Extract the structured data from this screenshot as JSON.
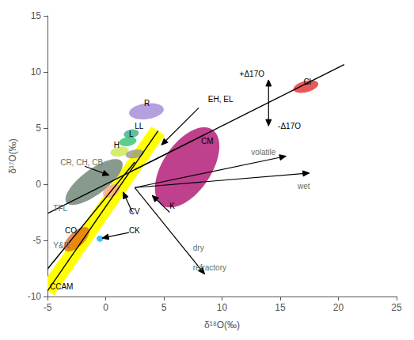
{
  "chart_data": {
    "type": "scatter",
    "x_label": "δ¹⁸O(‰)",
    "y_label": "δ¹⁷O(‰)",
    "xlim": [
      -5,
      25
    ],
    "ylim": [
      -10,
      15
    ],
    "xticks": [
      -5,
      0,
      5,
      10,
      15,
      20,
      25
    ],
    "yticks": [
      -10,
      -5,
      0,
      5,
      10,
      15
    ],
    "grid": false,
    "bands": [
      {
        "points": [
          [
            -5.0,
            -9.5
          ],
          [
            4.5,
            4.75
          ]
        ],
        "half_width": 0.7,
        "color": "#ffff00"
      }
    ],
    "ellipses": [
      {
        "x": 17.2,
        "y": 8.7,
        "width": 2.2,
        "height": 1.0,
        "angle": 15,
        "color": "#e02020"
      },
      {
        "x": 7.0,
        "y": 1.5,
        "width": 8.0,
        "height": 4.2,
        "angle": 58,
        "color": "#aa0066"
      },
      {
        "x": 3.5,
        "y": 6.5,
        "width": 3.0,
        "height": 1.4,
        "angle": 8,
        "color": "#9b7fd4"
      },
      {
        "x": 2.2,
        "y": 4.5,
        "width": 1.3,
        "height": 0.75,
        "angle": 10,
        "color": "#2aaa80"
      },
      {
        "x": 1.9,
        "y": 3.8,
        "width": 1.5,
        "height": 0.8,
        "angle": 10,
        "color": "#20c060"
      },
      {
        "x": 1.2,
        "y": 2.9,
        "width": 1.6,
        "height": 0.85,
        "angle": 10,
        "color": "#c8e840"
      },
      {
        "x": 2.5,
        "y": 2.7,
        "width": 1.6,
        "height": 0.75,
        "angle": 10,
        "color": "#909090"
      },
      {
        "x": -2.5,
        "y": -4.9,
        "width": 2.8,
        "height": 1.3,
        "angle": 45,
        "color": "#e06010"
      },
      {
        "x": -0.5,
        "y": -4.85,
        "width": 0.55,
        "height": 0.55,
        "angle": 0,
        "color": "#00aaff"
      },
      {
        "x": -1.0,
        "y": 0.2,
        "width": 6.0,
        "height": 2.2,
        "angle": 38,
        "color": "#607868"
      },
      {
        "x": 0.5,
        "y": -0.6,
        "width": 1.6,
        "height": 1.0,
        "angle": 32,
        "color": "#ff9999"
      }
    ],
    "lines": [
      {
        "points": [
          [
            -5,
            -2.6
          ],
          [
            8.5,
            4.42
          ]
        ],
        "color": "black"
      },
      {
        "points": [
          [
            -5.0,
            -9.5
          ],
          [
            4.5,
            4.75
          ]
        ],
        "color": "black"
      },
      {
        "points": [
          [
            -5,
            -7.55
          ],
          [
            2.5,
            1.975
          ]
        ],
        "color": "black"
      },
      {
        "points": [
          [
            2.5,
            1.3
          ],
          [
            20.5,
            10.66
          ]
        ],
        "color": "black"
      }
    ],
    "arrows": [
      {
        "from": [
          2.5,
          -0.3
        ],
        "to": [
          15.5,
          2.5
        ],
        "color": "black"
      },
      {
        "from": [
          2.5,
          -0.3
        ],
        "to": [
          17.5,
          1.0
        ],
        "color": "black"
      },
      {
        "from": [
          2.5,
          -0.3
        ],
        "to": [
          8.5,
          -8.0
        ],
        "color": "black"
      },
      {
        "from": [
          8.0,
          6.8
        ],
        "to": [
          4.8,
          3.5
        ],
        "color": "black"
      },
      {
        "from": [
          -1.8,
          1.6
        ],
        "to": [
          0.3,
          0.8
        ],
        "color": "black"
      },
      {
        "from": [
          2.3,
          -2.5
        ],
        "to": [
          1.5,
          -0.7
        ],
        "color": "black"
      },
      {
        "from": [
          2.0,
          -4.3
        ],
        "to": [
          -0.3,
          -4.8
        ],
        "color": "black"
      },
      {
        "from": [
          5.5,
          -2.5
        ],
        "to": [
          4.0,
          -1.0
        ],
        "color": "black"
      }
    ],
    "double_arrows": [
      {
        "from": [
          14.0,
          9.3
        ],
        "to": [
          14.0,
          5.2
        ],
        "color": "black"
      }
    ],
    "annotations": [
      {
        "x": 3.3,
        "y": 6.85,
        "text": "R",
        "color": "black"
      },
      {
        "x": 2.5,
        "y": 4.8,
        "text": "LL",
        "color": "black"
      },
      {
        "x": 2.0,
        "y": 4.1,
        "text": "L",
        "color": "black"
      },
      {
        "x": 0.7,
        "y": 3.1,
        "text": "H",
        "color": "black"
      },
      {
        "x": -3.9,
        "y": 1.6,
        "text": "CR, CH, CB",
        "color": "#607060"
      },
      {
        "x": -4.5,
        "y": -2.5,
        "text": "TFL",
        "color": "#607060"
      },
      {
        "x": -4.5,
        "y": -5.8,
        "text": "Y&R",
        "color": "#607060"
      },
      {
        "x": -4.8,
        "y": -9.5,
        "text": "CCAM",
        "color": "black"
      },
      {
        "x": -3.5,
        "y": -4.5,
        "text": "CO",
        "color": "black"
      },
      {
        "x": 2.0,
        "y": -2.8,
        "text": "CV",
        "color": "black"
      },
      {
        "x": 2.0,
        "y": -4.5,
        "text": "CK",
        "color": "black"
      },
      {
        "x": 5.5,
        "y": -2.3,
        "text": "K",
        "color": "black"
      },
      {
        "x": 8.2,
        "y": 3.5,
        "text": "CM",
        "color": "black"
      },
      {
        "x": 17.0,
        "y": 8.8,
        "text": "CI",
        "color": "black"
      },
      {
        "x": 8.8,
        "y": 7.2,
        "text": "EH, EL",
        "color": "black"
      },
      {
        "x": 12.5,
        "y": 2.5,
        "text": "volatile",
        "color": "#607060"
      },
      {
        "x": 16.5,
        "y": -0.5,
        "text": "wet",
        "color": "#607060"
      },
      {
        "x": 7.5,
        "y": -6.0,
        "text": "dry",
        "color": "#607060"
      },
      {
        "x": 7.5,
        "y": -7.8,
        "text": "refractory",
        "color": "#607060"
      },
      {
        "x": 11.5,
        "y": 9.5,
        "text": "+Δ17O",
        "color": "black"
      },
      {
        "x": 14.8,
        "y": 4.8,
        "text": "-Δ17O",
        "color": "black"
      }
    ]
  }
}
